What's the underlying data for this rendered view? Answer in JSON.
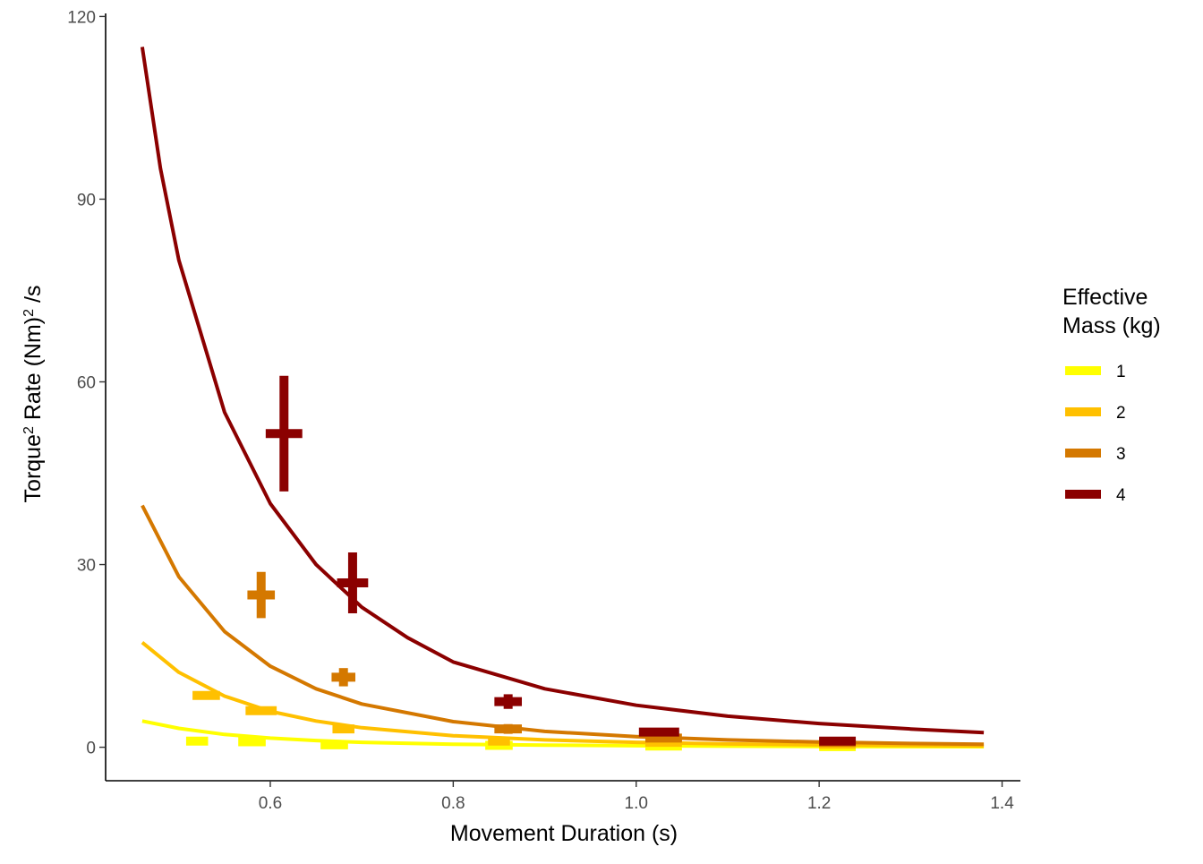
{
  "chart_data": {
    "type": "line",
    "title": "",
    "xlabel": "Movement Duration (s)",
    "ylabel": {
      "torque": "Torque",
      "sup1": "2",
      "rest": " Rate (Nm)",
      "sup2": "2",
      "unit": " /s"
    },
    "xlim": [
      0.42,
      1.42
    ],
    "ylim": [
      -5.5,
      120.5
    ],
    "x_ticks": [
      0.6,
      0.8,
      1.0,
      1.2,
      1.4
    ],
    "x_tick_labels": [
      "0.6",
      "0.8",
      "1.0",
      "1.2",
      "1.4"
    ],
    "y_ticks": [
      0,
      30,
      60,
      90,
      120
    ],
    "y_tick_labels": [
      "0",
      "30",
      "60",
      "90",
      "120"
    ],
    "grid": false,
    "legend": {
      "title_line1": "Effective",
      "title_line2": "Mass (kg)",
      "position": "right"
    },
    "series": [
      {
        "name": "1",
        "color": "#FFFF00",
        "curve": {
          "x": [
            0.46,
            0.5,
            0.55,
            0.6,
            0.65,
            0.7,
            0.8,
            0.9,
            1.0,
            1.1,
            1.2,
            1.3,
            1.38
          ],
          "y": [
            4.3,
            3.1,
            2.1,
            1.5,
            1.1,
            0.8,
            0.5,
            0.35,
            0.25,
            0.18,
            0.13,
            0.1,
            0.08
          ]
        },
        "points": [
          {
            "x": 0.52,
            "y": 1.0,
            "xerr": 0.012,
            "yerr": 0.5
          },
          {
            "x": 0.58,
            "y": 0.9,
            "xerr": 0.015,
            "yerr": 0.6
          },
          {
            "x": 0.67,
            "y": 0.4,
            "xerr": 0.015,
            "yerr": 0.5
          },
          {
            "x": 0.85,
            "y": 0.3,
            "xerr": 0.015,
            "yerr": 0.5
          },
          {
            "x": 1.03,
            "y": 0.2,
            "xerr": 0.02,
            "yerr": 0.4
          },
          {
            "x": 1.22,
            "y": 0.1,
            "xerr": 0.02,
            "yerr": 0.4
          }
        ]
      },
      {
        "name": "2",
        "color": "#FFC000",
        "curve": {
          "x": [
            0.46,
            0.5,
            0.55,
            0.6,
            0.65,
            0.7,
            0.8,
            0.9,
            1.0,
            1.1,
            1.2,
            1.3,
            1.38
          ],
          "y": [
            17.2,
            12.3,
            8.4,
            5.9,
            4.3,
            3.2,
            1.9,
            1.2,
            0.8,
            0.55,
            0.4,
            0.3,
            0.22
          ]
        },
        "points": [
          {
            "x": 0.53,
            "y": 8.5,
            "xerr": 0.015,
            "yerr": 0.6
          },
          {
            "x": 0.59,
            "y": 6.0,
            "xerr": 0.017,
            "yerr": 0.6
          },
          {
            "x": 0.68,
            "y": 3.0,
            "xerr": 0.012,
            "yerr": 0.7
          },
          {
            "x": 0.85,
            "y": 1.0,
            "xerr": 0.012,
            "yerr": 0.6
          },
          {
            "x": 1.03,
            "y": 0.8,
            "xerr": 0.02,
            "yerr": 0.5
          },
          {
            "x": 1.22,
            "y": 0.5,
            "xerr": 0.02,
            "yerr": 0.4
          }
        ]
      },
      {
        "name": "3",
        "color": "#D47800",
        "curve": {
          "x": [
            0.46,
            0.5,
            0.55,
            0.6,
            0.65,
            0.7,
            0.8,
            0.9,
            1.0,
            1.1,
            1.2,
            1.3,
            1.38
          ],
          "y": [
            39.7,
            28.0,
            19.0,
            13.3,
            9.6,
            7.1,
            4.2,
            2.6,
            1.75,
            1.2,
            0.85,
            0.62,
            0.5
          ]
        },
        "points": [
          {
            "x": 0.59,
            "y": 25.0,
            "xerr": 0.015,
            "yerr": 3.8
          },
          {
            "x": 0.68,
            "y": 11.5,
            "xerr": 0.013,
            "yerr": 1.5
          },
          {
            "x": 0.86,
            "y": 3.0,
            "xerr": 0.015,
            "yerr": 0.8
          },
          {
            "x": 1.03,
            "y": 1.5,
            "xerr": 0.02,
            "yerr": 0.5
          },
          {
            "x": 1.22,
            "y": 0.8,
            "xerr": 0.02,
            "yerr": 0.4
          }
        ]
      },
      {
        "name": "4",
        "color": "#8B0000",
        "curve": {
          "x": [
            0.46,
            0.48,
            0.5,
            0.55,
            0.6,
            0.65,
            0.7,
            0.75,
            0.8,
            0.9,
            1.0,
            1.1,
            1.2,
            1.3,
            1.38
          ],
          "y": [
            115,
            95,
            80,
            55,
            40,
            30,
            23,
            18,
            14,
            9.6,
            6.9,
            5.1,
            3.9,
            3.0,
            2.4
          ]
        },
        "points": [
          {
            "x": 0.615,
            "y": 51.5,
            "xerr": 0.02,
            "yerr": 9.5
          },
          {
            "x": 0.69,
            "y": 27.0,
            "xerr": 0.017,
            "yerr": 5.0
          },
          {
            "x": 0.86,
            "y": 7.5,
            "xerr": 0.015,
            "yerr": 1.2
          },
          {
            "x": 1.025,
            "y": 2.5,
            "xerr": 0.022,
            "yerr": 0.6
          },
          {
            "x": 1.22,
            "y": 1.0,
            "xerr": 0.02,
            "yerr": 0.4
          }
        ]
      }
    ]
  }
}
